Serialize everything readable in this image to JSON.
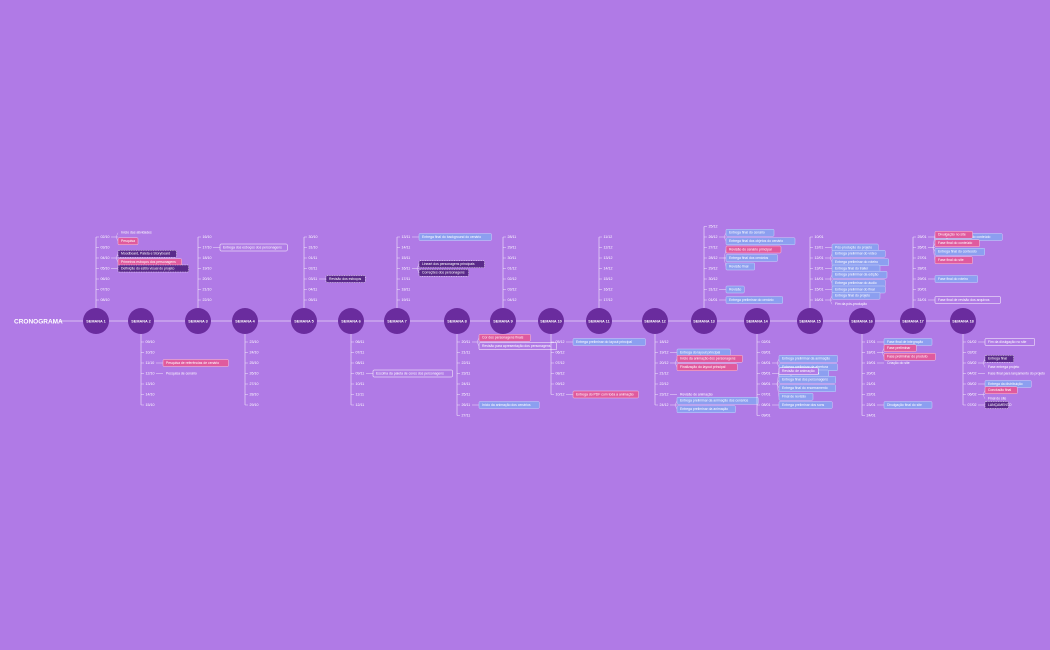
{
  "title": "CRONOGRAMA",
  "weeks": [
    {
      "label": "SEMANA 1",
      "dir": "up",
      "entries": [
        {
          "date": "02/10",
          "items": [
            {
              "text": "Início das atividades",
              "style": "plain"
            },
            {
              "text": "Pesquisa",
              "style": "pink"
            }
          ]
        },
        {
          "date": "03/10"
        },
        {
          "date": "04/10",
          "items": [
            {
              "text": "Moodboard, Paleta e Storyboard",
              "style": "dark"
            },
            {
              "text": "Primeiros esboços dos personagens",
              "style": "pink"
            }
          ]
        },
        {
          "date": "05/10",
          "items": [
            {
              "text": "Definição do estilo visual do projeto",
              "style": "dark"
            }
          ]
        },
        {
          "date": "06/10"
        },
        {
          "date": "07/10"
        },
        {
          "date": "08/10"
        }
      ]
    },
    {
      "label": "SEMANA 2",
      "dir": "down",
      "entries": [
        {
          "date": "09/10"
        },
        {
          "date": "10/10"
        },
        {
          "date": "11/10",
          "items": [
            {
              "text": "Pesquisa de referências de cenário",
              "style": "pink"
            }
          ]
        },
        {
          "date": "12/10",
          "items": [
            {
              "text": "Pesquisa de cenário",
              "style": "plain"
            }
          ]
        },
        {
          "date": "13/10"
        },
        {
          "date": "14/10"
        },
        {
          "date": "15/10"
        }
      ]
    },
    {
      "label": "SEMANA 3",
      "dir": "up",
      "entries": [
        {
          "date": "16/10"
        },
        {
          "date": "17/10",
          "items": [
            {
              "text": "Entrega dos esboços dos personagens",
              "style": "white"
            }
          ]
        },
        {
          "date": "18/10"
        },
        {
          "date": "19/10"
        },
        {
          "date": "20/10"
        },
        {
          "date": "21/10"
        },
        {
          "date": "22/10"
        }
      ]
    },
    {
      "label": "SEMANA 4",
      "dir": "down",
      "entries": [
        {
          "date": "23/10"
        },
        {
          "date": "24/10"
        },
        {
          "date": "25/10"
        },
        {
          "date": "26/10"
        },
        {
          "date": "27/10"
        },
        {
          "date": "28/10"
        },
        {
          "date": "29/10"
        }
      ]
    },
    {
      "label": "SEMANA 5",
      "dir": "up",
      "entries": [
        {
          "date": "30/10"
        },
        {
          "date": "31/10"
        },
        {
          "date": "01/11"
        },
        {
          "date": "02/11"
        },
        {
          "date": "03/11",
          "items": [
            {
              "text": "Revisão dos esboços",
              "style": "dark"
            }
          ]
        },
        {
          "date": "04/11"
        },
        {
          "date": "05/11"
        }
      ]
    },
    {
      "label": "SEMANA 6",
      "dir": "down",
      "entries": [
        {
          "date": "06/11"
        },
        {
          "date": "07/11"
        },
        {
          "date": "08/11"
        },
        {
          "date": "09/11",
          "items": [
            {
              "text": "Escolha da paleta de cores dos personagens",
              "style": "white"
            }
          ]
        },
        {
          "date": "10/11"
        },
        {
          "date": "11/11"
        },
        {
          "date": "12/11"
        }
      ]
    },
    {
      "label": "SEMANA 7",
      "dir": "up",
      "entries": [
        {
          "date": "13/11",
          "items": [
            {
              "text": "Entrega final do background do cenário",
              "style": "blue"
            }
          ]
        },
        {
          "date": "14/11"
        },
        {
          "date": "15/11"
        },
        {
          "date": "16/11",
          "items": [
            {
              "text": "Lineart dos personagens principais",
              "style": "dark"
            },
            {
              "text": "Correções dos personagens",
              "style": "dark"
            }
          ]
        },
        {
          "date": "17/11"
        },
        {
          "date": "18/11"
        },
        {
          "date": "19/11"
        }
      ]
    },
    {
      "label": "SEMANA 8",
      "dir": "down",
      "entries": [
        {
          "date": "20/11",
          "items": [
            {
              "text": "Cor dos personagens finais",
              "style": "pink"
            },
            {
              "text": "Revisão para apresentação dos personagens",
              "style": "white"
            }
          ]
        },
        {
          "date": "21/11"
        },
        {
          "date": "22/11"
        },
        {
          "date": "23/11"
        },
        {
          "date": "24/11"
        },
        {
          "date": "25/11"
        },
        {
          "date": "26/11",
          "items": [
            {
              "text": "Início da animação dos cenários",
              "style": "blue"
            }
          ]
        },
        {
          "date": "27/11"
        }
      ]
    },
    {
      "label": "SEMANA 9",
      "dir": "up",
      "entries": [
        {
          "date": "28/11"
        },
        {
          "date": "29/11"
        },
        {
          "date": "30/11"
        },
        {
          "date": "01/12"
        },
        {
          "date": "02/12"
        },
        {
          "date": "03/12"
        },
        {
          "date": "04/12"
        }
      ]
    },
    {
      "label": "SEMANA 10",
      "dir": "down",
      "entries": [
        {
          "date": "05/12",
          "items": [
            {
              "text": "Entrega preliminar do layout principal",
              "style": "blue"
            }
          ]
        },
        {
          "date": "06/12"
        },
        {
          "date": "07/12"
        },
        {
          "date": "08/12"
        },
        {
          "date": "09/12"
        },
        {
          "date": "10/12",
          "items": [
            {
              "text": "Entrega do PDF com toda a animação",
              "style": "pink"
            }
          ]
        }
      ]
    },
    {
      "label": "SEMANA 11",
      "dir": "up",
      "entries": [
        {
          "date": "11/12"
        },
        {
          "date": "12/12"
        },
        {
          "date": "13/12"
        },
        {
          "date": "14/12"
        },
        {
          "date": "15/12"
        },
        {
          "date": "16/12"
        },
        {
          "date": "17/12"
        }
      ]
    },
    {
      "label": "SEMANA 12",
      "dir": "down",
      "entries": [
        {
          "date": "18/12"
        },
        {
          "date": "19/12",
          "items": [
            {
              "text": "Entrega do layout principal",
              "style": "blue"
            }
          ]
        },
        {
          "date": "20/12",
          "items": [
            {
              "text": "Início da animação dos personagens",
              "style": "pink"
            },
            {
              "text": "Finalização do layout principal",
              "style": "pink"
            }
          ]
        },
        {
          "date": "21/12"
        },
        {
          "date": "22/12"
        },
        {
          "date": "23/12",
          "items": [
            {
              "text": "Revisão de animação",
              "style": "plain"
            }
          ]
        },
        {
          "date": "24/12",
          "items": [
            {
              "text": "Entrega preliminar da animação dos cenários",
              "style": "blue"
            },
            {
              "text": "Entrega preliminar da animação",
              "style": "blue"
            }
          ]
        }
      ]
    },
    {
      "label": "SEMANA 13",
      "dir": "up",
      "entries": [
        {
          "date": "25/12"
        },
        {
          "date": "26/12",
          "items": [
            {
              "text": "Entrega final do cenário",
              "style": "blue"
            },
            {
              "text": "Entrega final dos objetos do cenário",
              "style": "blue"
            }
          ]
        },
        {
          "date": "27/12"
        },
        {
          "date": "28/12",
          "items": [
            {
              "text": "Revisão do cenário principal",
              "style": "pink"
            },
            {
              "text": "Entrega final dos cenários",
              "style": "blue"
            },
            {
              "text": "Revisão final",
              "style": "blue"
            }
          ]
        },
        {
          "date": "29/12"
        },
        {
          "date": "30/12"
        },
        {
          "date": "31/12",
          "items": [
            {
              "text": "Revisão",
              "style": "blue"
            }
          ]
        },
        {
          "date": "01/01",
          "items": [
            {
              "text": "Entrega preliminar do cenário",
              "style": "blue"
            }
          ]
        }
      ]
    },
    {
      "label": "SEMANA 14",
      "dir": "down",
      "entries": [
        {
          "date": "02/01"
        },
        {
          "date": "03/01"
        },
        {
          "date": "04/01",
          "items": [
            {
              "text": "Entrega preliminar da animação",
              "style": "blue"
            },
            {
              "text": "Entrega preliminar da abertura",
              "style": "blue"
            }
          ]
        },
        {
          "date": "05/01",
          "items": [
            {
              "text": "Entrega final da abertura",
              "style": "blue"
            }
          ]
        },
        {
          "date": "06/01",
          "items": [
            {
              "text": "Revisão de animação",
              "style": "white"
            },
            {
              "text": "Entrega final dos personagens",
              "style": "blue"
            },
            {
              "text": "Entrega final do encerramento",
              "style": "blue"
            },
            {
              "text": "Final de revisão",
              "style": "blue"
            }
          ]
        },
        {
          "date": "07/01"
        },
        {
          "date": "08/01",
          "items": [
            {
              "text": "Entrega preliminar dos sons",
              "style": "blue"
            }
          ]
        },
        {
          "date": "09/01"
        }
      ]
    },
    {
      "label": "SEMANA 15",
      "dir": "up",
      "entries": [
        {
          "date": "10/01"
        },
        {
          "date": "11/01",
          "items": [
            {
              "text": "Pós-produção do projeto",
              "style": "blue"
            }
          ]
        },
        {
          "date": "12/01",
          "items": [
            {
              "text": "Entrega preliminar do vídeo",
              "style": "blue"
            },
            {
              "text": "Entrega preliminar do roteiro",
              "style": "blue"
            }
          ]
        },
        {
          "date": "13/01",
          "items": [
            {
              "text": "Entrega final do trailer",
              "style": "blue"
            }
          ]
        },
        {
          "date": "14/01",
          "items": [
            {
              "text": "Entrega preliminar da edição",
              "style": "blue"
            },
            {
              "text": "Entrega preliminar do áudio",
              "style": "blue"
            }
          ]
        },
        {
          "date": "15/01",
          "items": [
            {
              "text": "Entrega preliminar do final",
              "style": "blue"
            }
          ]
        },
        {
          "date": "16/01",
          "items": [
            {
              "text": "Entrega final do projeto",
              "style": "blue"
            },
            {
              "text": "Fim da pós-produção",
              "style": "plain"
            }
          ]
        }
      ]
    },
    {
      "label": "SEMANA 16",
      "dir": "down",
      "entries": [
        {
          "date": "17/01",
          "items": [
            {
              "text": "Fase final de integração",
              "style": "blue"
            }
          ]
        },
        {
          "date": "18/01",
          "items": [
            {
              "text": "Fase preliminar",
              "style": "pink"
            },
            {
              "text": "Fase preliminar do produto",
              "style": "pink"
            }
          ]
        },
        {
          "date": "19/01",
          "items": [
            {
              "text": "Criação do site",
              "style": "plain"
            }
          ]
        },
        {
          "date": "20/01"
        },
        {
          "date": "21/01"
        },
        {
          "date": "22/01"
        },
        {
          "date": "23/01",
          "items": [
            {
              "text": "Divulgação final do site",
              "style": "blue"
            }
          ]
        },
        {
          "date": "24/01"
        }
      ]
    },
    {
      "label": "SEMANA 17",
      "dir": "up",
      "entries": [
        {
          "date": "25/01",
          "items": [
            {
              "text": "Entrega final do site e do conteúdo",
              "style": "blue"
            }
          ]
        },
        {
          "date": "26/01",
          "items": [
            {
              "text": "Divulgação no site",
              "style": "pink"
            },
            {
              "text": "Fase final do conteúdo",
              "style": "pink"
            },
            {
              "text": "Entrega final do conteúdo",
              "style": "blue"
            },
            {
              "text": "Fase final do site",
              "style": "pink"
            }
          ]
        },
        {
          "date": "27/01"
        },
        {
          "date": "28/01"
        },
        {
          "date": "29/01",
          "items": [
            {
              "text": "Fase final do roteiro",
              "style": "blue"
            }
          ]
        },
        {
          "date": "30/01"
        },
        {
          "date": "31/01",
          "items": [
            {
              "text": "Fase final de revisão dos arquivos",
              "style": "white"
            }
          ]
        }
      ]
    },
    {
      "label": "SEMANA 18",
      "dir": "down",
      "entries": [
        {
          "date": "01/02",
          "items": [
            {
              "text": "Fim da divulgação no site",
              "style": "white"
            }
          ]
        },
        {
          "date": "02/02"
        },
        {
          "date": "03/02",
          "items": [
            {
              "text": "Entrega final",
              "style": "dark"
            },
            {
              "text": "Fase entrega projeto",
              "style": "plain"
            }
          ]
        },
        {
          "date": "04/02",
          "items": [
            {
              "text": "Fase final para lançamento do projeto",
              "style": "plain"
            }
          ]
        },
        {
          "date": "05/02",
          "items": [
            {
              "text": "Entrega da distribuição",
              "style": "blue"
            }
          ]
        },
        {
          "date": "06/02",
          "items": [
            {
              "text": "Conclusão final",
              "style": "pink"
            },
            {
              "text": "Final do site",
              "style": "plain"
            }
          ]
        },
        {
          "date": "07/02",
          "items": [
            {
              "text": "LANÇAMENTO",
              "style": "dark"
            }
          ]
        }
      ]
    }
  ]
}
